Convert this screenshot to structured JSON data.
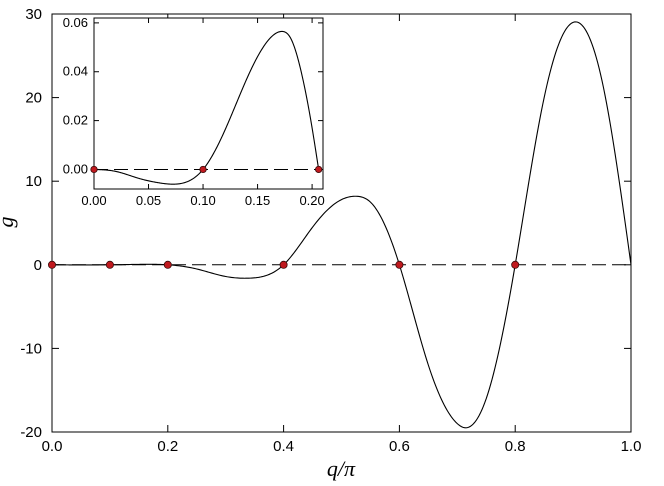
{
  "chart_data": [
    {
      "type": "line",
      "title": "",
      "xlabel": "q/π",
      "ylabel": "g",
      "xlim": [
        0,
        1
      ],
      "ylim": [
        -20,
        30
      ],
      "xticks": [
        "0.0",
        "0.2",
        "0.4",
        "0.6",
        "0.8",
        "1.0"
      ],
      "yticks": [
        "-20",
        "-10",
        "0",
        "10",
        "20",
        "30"
      ],
      "grid": false,
      "legend": "none",
      "series": [
        {
          "style": "solid",
          "color": "#000000",
          "x": [
            0,
            0.1,
            0.15,
            0.2,
            0.25,
            0.3,
            0.34,
            0.4,
            0.45,
            0.5,
            0.525,
            0.55,
            0.6,
            0.65,
            0.7,
            0.715,
            0.75,
            0.8,
            0.85,
            0.9,
            0.95,
            1.0
          ],
          "y": [
            0,
            0,
            0.05,
            0,
            -0.5,
            -1.4,
            -1.6,
            0,
            4.5,
            7.8,
            8.2,
            7.5,
            0,
            -12,
            -19,
            -19.5,
            -16,
            0,
            20,
            29,
            22,
            0
          ]
        },
        {
          "style": "dashed",
          "color": "#000000",
          "x": [
            0,
            1
          ],
          "y": [
            0,
            0
          ]
        },
        {
          "style": "markers",
          "color": "#c0191e",
          "x": [
            0,
            0.1,
            0.2,
            0.4,
            0.6,
            0.8
          ],
          "y": [
            0,
            0,
            0,
            0,
            0,
            0
          ]
        }
      ]
    },
    {
      "type": "line",
      "title": "",
      "xlim": [
        0,
        0.21
      ],
      "ylim": [
        -0.008,
        0.062
      ],
      "xticks": [
        "0.00",
        "0.05",
        "0.10",
        "0.15",
        "0.20"
      ],
      "yticks": [
        "0.00",
        "0.02",
        "0.04",
        "0.06"
      ],
      "grid": false,
      "legend": "none",
      "series": [
        {
          "style": "solid",
          "color": "#000000",
          "x": [
            0,
            0.02,
            0.04,
            0.06,
            0.075,
            0.09,
            0.1,
            0.12,
            0.14,
            0.16,
            0.172,
            0.18,
            0.19,
            0.2,
            0.206
          ],
          "y": [
            0,
            -0.0008,
            -0.0035,
            -0.0055,
            -0.006,
            -0.004,
            0,
            0.016,
            0.037,
            0.053,
            0.0565,
            0.054,
            0.04,
            0.017,
            0
          ]
        },
        {
          "style": "dashed",
          "color": "#000000",
          "x": [
            0,
            0.21
          ],
          "y": [
            0,
            0
          ]
        },
        {
          "style": "markers",
          "color": "#c0191e",
          "x": [
            0,
            0.1,
            0.206
          ],
          "y": [
            0,
            0,
            0
          ]
        }
      ]
    }
  ]
}
